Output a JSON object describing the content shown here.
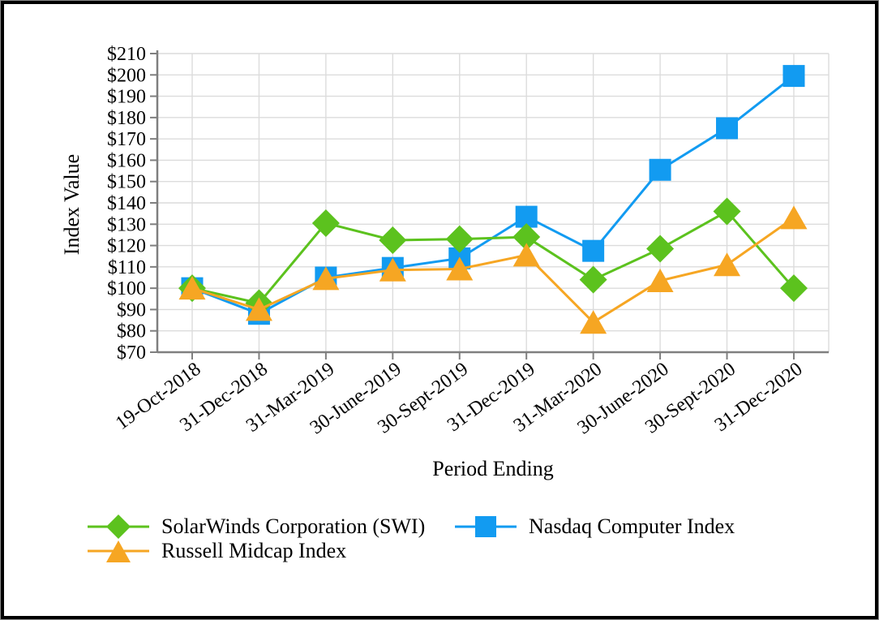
{
  "chart_data": {
    "type": "line",
    "title": "",
    "xlabel": "Period Ending",
    "ylabel": "Index Value",
    "ylim": [
      70,
      210
    ],
    "ytick_step": 10,
    "ytick_labels": [
      "$210",
      "$200",
      "$190",
      "$180",
      "$170",
      "$160",
      "$150",
      "$140",
      "$130",
      "$120",
      "$110",
      "$100",
      "$90",
      "$80",
      "$70"
    ],
    "ytick_values": [
      210,
      200,
      190,
      180,
      170,
      160,
      150,
      140,
      130,
      120,
      110,
      100,
      90,
      80,
      70
    ],
    "grid": true,
    "grid_color": "#dcdcdc",
    "axis_color": "#7f7f7f",
    "legend_position": "bottom",
    "categories": [
      "19-Oct-2018",
      "31-Dec-2018",
      "31-Mar-2019",
      "30-June-2019",
      "30-Sept-2019",
      "31-Dec-2019",
      "31-Mar-2020",
      "30-June-2020",
      "30-Sept-2020",
      "31-Dec-2020"
    ],
    "series": [
      {
        "name": "SolarWinds Corporation (SWI)",
        "marker": "diamond",
        "color": "#5cc21e",
        "values": [
          100,
          93,
          130.5,
          122.5,
          123,
          124,
          104,
          118.5,
          136,
          100
        ]
      },
      {
        "name": "Nasdaq Computer Index",
        "marker": "square",
        "color": "#129bf1",
        "values": [
          100,
          88,
          105,
          109.5,
          114,
          133.5,
          117.5,
          155.5,
          175,
          199.5
        ]
      },
      {
        "name": "Russell Midcap Index",
        "marker": "triangle",
        "color": "#f6a623",
        "values": [
          100,
          90,
          104.5,
          108.5,
          109,
          115.5,
          84,
          103.5,
          111,
          133
        ]
      }
    ]
  }
}
